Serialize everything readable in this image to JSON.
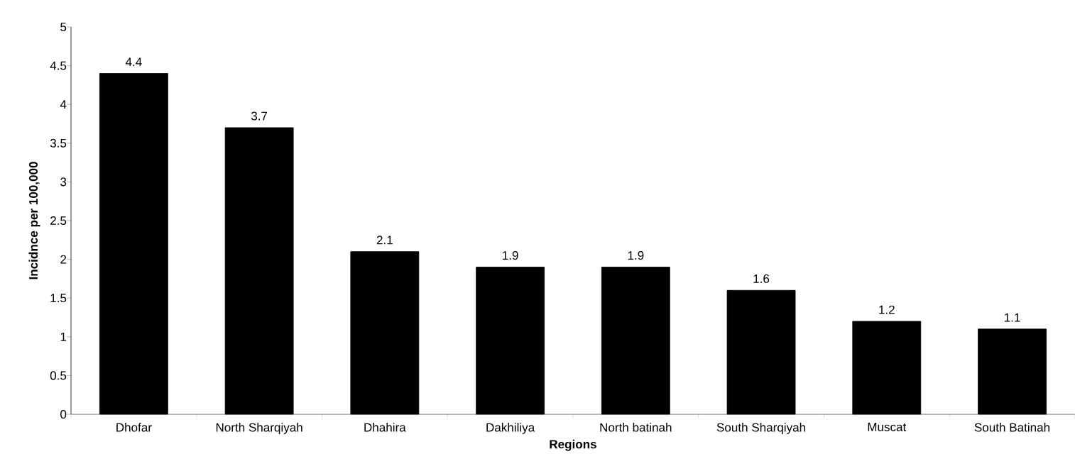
{
  "chart_data": {
    "type": "bar",
    "xlabel": "Regions",
    "ylabel": "Incidnce per 100,000",
    "categories": [
      "Dhofar",
      "North Sharqiyah",
      "Dhahira",
      "Dakhiliya",
      "North batinah",
      "South Sharqiyah",
      "Muscat",
      "South Batinah"
    ],
    "values": [
      4.4,
      3.7,
      2.1,
      1.9,
      1.9,
      1.6,
      1.2,
      1.1
    ],
    "color": "#000000",
    "ylim": [
      0,
      5
    ],
    "yticks": [
      0,
      0.5,
      1,
      1.5,
      2,
      2.5,
      3,
      3.5,
      4,
      4.5,
      5
    ],
    "data_labels": true
  }
}
